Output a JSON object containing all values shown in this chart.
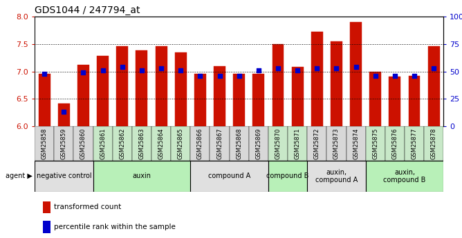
{
  "title": "GDS1044 / 247794_at",
  "samples": [
    "GSM25858",
    "GSM25859",
    "GSM25860",
    "GSM25861",
    "GSM25862",
    "GSM25863",
    "GSM25864",
    "GSM25865",
    "GSM25866",
    "GSM25867",
    "GSM25868",
    "GSM25869",
    "GSM25870",
    "GSM25871",
    "GSM25872",
    "GSM25873",
    "GSM25874",
    "GSM25875",
    "GSM25876",
    "GSM25877",
    "GSM25878"
  ],
  "bar_values": [
    6.95,
    6.42,
    7.12,
    7.28,
    7.46,
    7.38,
    7.46,
    7.35,
    6.95,
    7.1,
    6.95,
    6.95,
    7.5,
    7.08,
    7.72,
    7.55,
    7.9,
    7.0,
    6.9,
    6.92,
    7.46
  ],
  "percentile_raw": [
    48,
    13,
    49,
    51,
    54,
    51,
    53,
    51,
    46,
    46,
    46,
    51,
    53,
    51,
    53,
    53,
    54,
    46,
    46,
    46,
    53
  ],
  "bar_color": "#cc1100",
  "dot_color": "#0000cc",
  "ylim": [
    6.0,
    8.0
  ],
  "yticks": [
    6.0,
    6.5,
    7.0,
    7.5,
    8.0
  ],
  "right_yticks": [
    0,
    25,
    50,
    75,
    100
  ],
  "right_ylim": [
    0,
    100
  ],
  "groups": [
    {
      "label": "negative control",
      "start": 0,
      "end": 3,
      "color": "#e0e0e0"
    },
    {
      "label": "auxin",
      "start": 3,
      "end": 8,
      "color": "#b8f0b8"
    },
    {
      "label": "compound A",
      "start": 8,
      "end": 12,
      "color": "#e0e0e0"
    },
    {
      "label": "compound B",
      "start": 12,
      "end": 14,
      "color": "#b8f0b8"
    },
    {
      "label": "auxin,\ncompound A",
      "start": 14,
      "end": 17,
      "color": "#e0e0e0"
    },
    {
      "label": "auxin,\ncompound B",
      "start": 17,
      "end": 21,
      "color": "#b8f0b8"
    }
  ],
  "xtick_bg_colors": [
    "#d8d8d8",
    "#d8d8d8",
    "#d8d8d8",
    "#c8e8c8",
    "#c8e8c8",
    "#c8e8c8",
    "#c8e8c8",
    "#c8e8c8",
    "#d8d8d8",
    "#d8d8d8",
    "#d8d8d8",
    "#d8d8d8",
    "#c8e8c8",
    "#c8e8c8",
    "#d8d8d8",
    "#d8d8d8",
    "#d8d8d8",
    "#c8e8c8",
    "#c8e8c8",
    "#c8e8c8",
    "#c8e8c8"
  ],
  "bar_width": 0.6,
  "background_color": "#ffffff"
}
